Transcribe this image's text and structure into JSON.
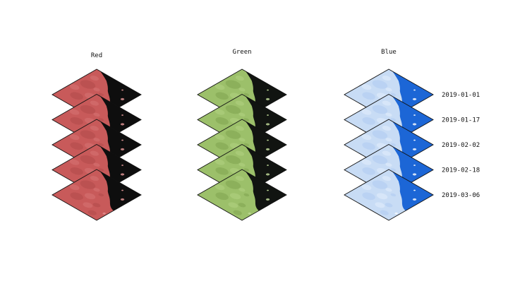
{
  "columns": [
    {
      "title": "Red",
      "colors": {
        "base": "#c85a5a",
        "land_dark": "#b14a4a",
        "land_light": "#d77474",
        "water": "#0e0e0e",
        "detail": "#e79a9a"
      }
    },
    {
      "title": "Green",
      "colors": {
        "base": "#9cc06a",
        "land_dark": "#7fa34f",
        "land_light": "#b2d282",
        "water": "#111411",
        "detail": "#c6e09d"
      }
    },
    {
      "title": "Blue",
      "colors": {
        "base": "#c8dcf5",
        "land_dark": "#aecbf0",
        "land_light": "#e4eefb",
        "water": "#1c66d6",
        "detail": "#ffffff"
      }
    }
  ],
  "dates": [
    "2019-01-01",
    "2019-01-17",
    "2019-02-02",
    "2019-02-18",
    "2019-03-06"
  ]
}
